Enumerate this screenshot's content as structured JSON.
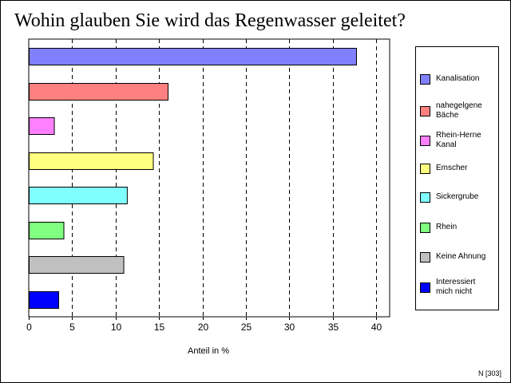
{
  "chart_data": {
    "type": "bar",
    "orientation": "horizontal",
    "title": "Wohin glauben Sie wird das Regenwasser geleitet?",
    "xlabel": "Anteil in %",
    "ylabel": "",
    "xlim": [
      0,
      40
    ],
    "xticks": [
      "0",
      "5",
      "10",
      "15",
      "20",
      "25",
      "30",
      "35",
      "40"
    ],
    "grid": "vertical-dashed",
    "legend_position": "right",
    "categories": [
      "Kanalisation",
      "nahegelgene Bäche",
      "Rhein-Herne Kanal",
      "Emscher",
      "Sickergrube",
      "Rhein",
      "Keine Ahnung",
      "Interessiert mich nicht"
    ],
    "legend_labels": [
      "Kanalisation",
      "nahegelgene\nBäche",
      "Rhein-Herne\nKanal",
      "Emscher",
      "Sickergrube",
      "Rhein",
      "Keine Ahnung",
      "Interessiert\nmich nicht"
    ],
    "values": [
      37.7,
      16.0,
      2.9,
      14.3,
      11.3,
      4.0,
      10.9,
      3.4
    ],
    "colors": [
      "#8080ff",
      "#ff8080",
      "#ff80ff",
      "#ffff80",
      "#80ffff",
      "#80ff80",
      "#c0c0c0",
      "#0000ff"
    ],
    "footnote": "N [303]"
  }
}
